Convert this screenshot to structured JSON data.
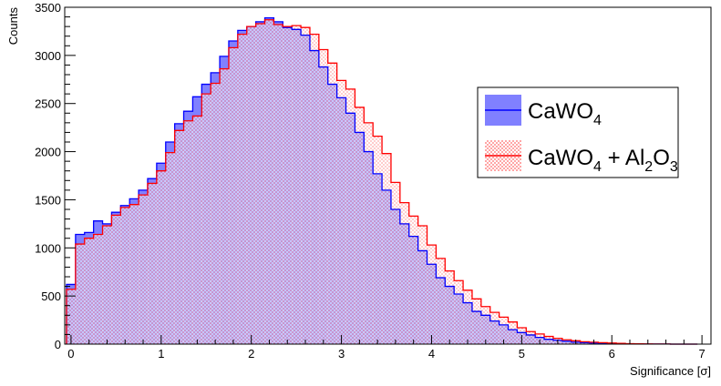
{
  "chart_data": {
    "type": "histogram",
    "xlabel": "Significance [σ]",
    "ylabel": "Counts",
    "xlim": [
      -0.07,
      7.1
    ],
    "ylim": [
      0,
      3500
    ],
    "x_ticks": [
      0,
      1,
      2,
      3,
      4,
      5,
      6,
      7
    ],
    "x_tick_labels": [
      "0",
      "1",
      "2",
      "3",
      "4",
      "5",
      "6",
      "7"
    ],
    "y_ticks": [
      0,
      500,
      1000,
      1500,
      2000,
      2500,
      3000,
      3500
    ],
    "y_tick_labels": [
      "0",
      "500",
      "1000",
      "1500",
      "2000",
      "2500",
      "3000",
      "3500"
    ],
    "bin_start": -0.05,
    "bin_width": 0.1,
    "legend_position": "right",
    "series": [
      {
        "name": "CaWO",
        "name_sub": "4",
        "fill_color": "#8080ff",
        "line_color": "#0000ff",
        "values": [
          620,
          1140,
          1160,
          1280,
          1250,
          1370,
          1440,
          1510,
          1600,
          1720,
          1880,
          2100,
          2290,
          2420,
          2570,
          2700,
          2820,
          2990,
          3150,
          3260,
          3300,
          3350,
          3390,
          3350,
          3290,
          3270,
          3210,
          3050,
          2880,
          2700,
          2560,
          2400,
          2200,
          2000,
          1770,
          1600,
          1400,
          1250,
          1120,
          970,
          830,
          690,
          600,
          520,
          430,
          340,
          300,
          240,
          200,
          150,
          120,
          95,
          70,
          50,
          40,
          30,
          20,
          15,
          12,
          8,
          6,
          4,
          3,
          2,
          1,
          1,
          1,
          0,
          0,
          0
        ]
      },
      {
        "name": "CaWO",
        "name_sub": "4",
        "name_suffix_parts": [
          " + Al",
          "2",
          "O",
          "3"
        ],
        "fill_color": "#ff9999",
        "line_color": "#ff0000",
        "values": [
          570,
          1040,
          1100,
          1140,
          1230,
          1340,
          1420,
          1450,
          1550,
          1670,
          1800,
          1990,
          2220,
          2320,
          2370,
          2600,
          2710,
          2860,
          3080,
          3220,
          3300,
          3330,
          3370,
          3320,
          3300,
          3310,
          3290,
          3220,
          3060,
          2920,
          2740,
          2650,
          2460,
          2300,
          2160,
          1980,
          1680,
          1470,
          1330,
          1230,
          1030,
          890,
          760,
          660,
          560,
          470,
          390,
          330,
          280,
          230,
          170,
          130,
          105,
          80,
          60,
          45,
          35,
          25,
          20,
          15,
          12,
          8,
          5,
          3,
          2,
          1,
          1,
          0,
          0,
          0
        ]
      }
    ]
  }
}
